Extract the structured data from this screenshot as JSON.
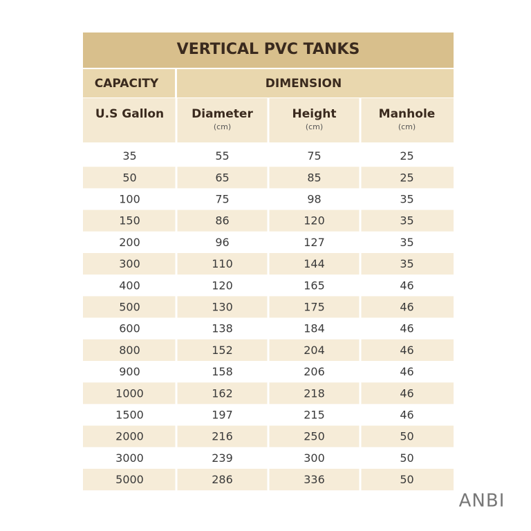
{
  "title": "VERTICAL PVC TANKS",
  "header": {
    "capacity": "CAPACITY",
    "dimension": "DIMENSION"
  },
  "columns": [
    {
      "name": "U.S Gallon"
    },
    {
      "name": "Diameter",
      "unit": "(cm)"
    },
    {
      "name": "Height",
      "unit": "(cm)"
    },
    {
      "name": "Manhole",
      "unit": "(cm)"
    }
  ],
  "rows": [
    [
      35,
      55,
      75,
      25
    ],
    [
      50,
      65,
      85,
      25
    ],
    [
      100,
      75,
      98,
      35
    ],
    [
      150,
      86,
      120,
      35
    ],
    [
      200,
      96,
      127,
      35
    ],
    [
      300,
      110,
      144,
      35
    ],
    [
      400,
      120,
      165,
      46
    ],
    [
      500,
      130,
      175,
      46
    ],
    [
      600,
      138,
      184,
      46
    ],
    [
      800,
      152,
      204,
      46
    ],
    [
      900,
      158,
      206,
      46
    ],
    [
      1000,
      162,
      218,
      46
    ],
    [
      1500,
      197,
      215,
      46
    ],
    [
      2000,
      216,
      250,
      50
    ],
    [
      3000,
      239,
      300,
      50
    ],
    [
      5000,
      286,
      336,
      50
    ]
  ],
  "logo": "ANBI"
}
